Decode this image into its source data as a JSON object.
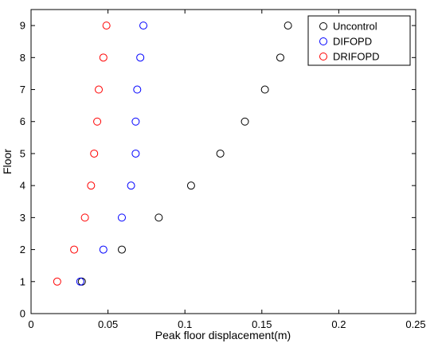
{
  "chart_data": {
    "type": "scatter",
    "xlabel": "Peak floor displacement(m)",
    "ylabel": "Floor",
    "xlim": [
      0,
      0.25
    ],
    "ylim": [
      0,
      9.5
    ],
    "x_ticks": [
      0,
      0.05,
      0.1,
      0.15,
      0.2,
      0.25
    ],
    "x_tick_labels": [
      "0",
      "0.05",
      "0.1",
      "0.15",
      "0.2",
      "0.25"
    ],
    "y_ticks": [
      0,
      1,
      2,
      3,
      4,
      5,
      6,
      7,
      8,
      9
    ],
    "y_tick_labels": [
      "0",
      "1",
      "2",
      "3",
      "4",
      "5",
      "6",
      "7",
      "8",
      "9"
    ],
    "grid": false,
    "legend_position": "top-right",
    "series": [
      {
        "name": "Uncontrol",
        "color": "#000000",
        "marker": "open-circle",
        "x": [
          0.033,
          0.059,
          0.083,
          0.104,
          0.123,
          0.139,
          0.152,
          0.162,
          0.167
        ],
        "y": [
          1,
          2,
          3,
          4,
          5,
          6,
          7,
          8,
          9
        ]
      },
      {
        "name": "DIFOPD",
        "color": "#0000ff",
        "marker": "open-circle",
        "x": [
          0.032,
          0.047,
          0.059,
          0.065,
          0.068,
          0.068,
          0.069,
          0.071,
          0.073
        ],
        "y": [
          1,
          2,
          3,
          4,
          5,
          6,
          7,
          8,
          9
        ]
      },
      {
        "name": "DRIFOPD",
        "color": "#ff0000",
        "marker": "open-circle",
        "x": [
          0.017,
          0.028,
          0.035,
          0.039,
          0.041,
          0.043,
          0.044,
          0.047,
          0.049
        ],
        "y": [
          1,
          2,
          3,
          4,
          5,
          6,
          7,
          8,
          9
        ]
      }
    ]
  }
}
